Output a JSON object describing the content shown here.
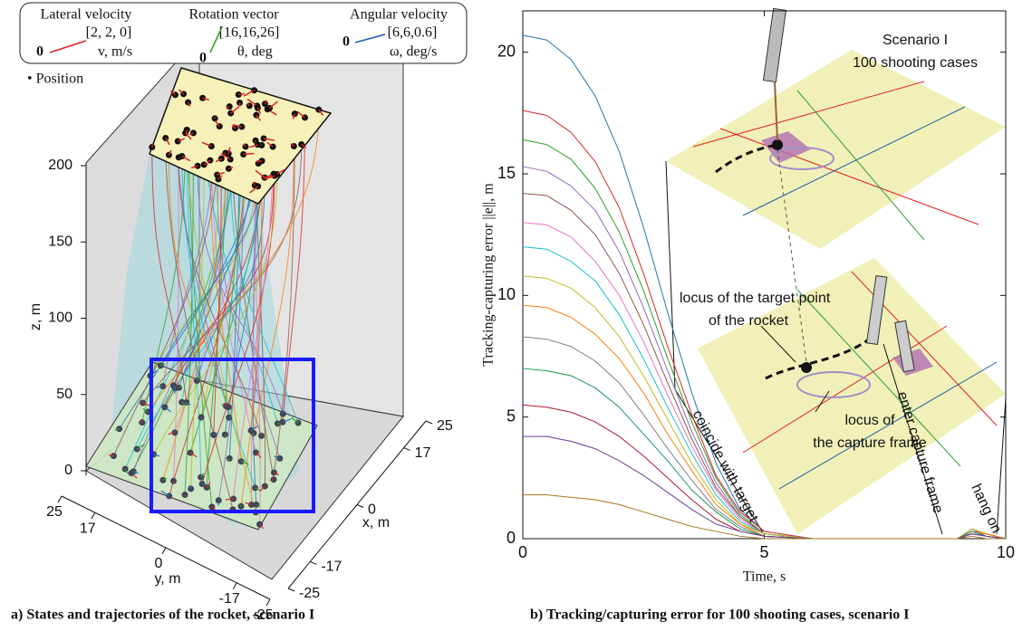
{
  "panel_a": {
    "legend": {
      "lateral": {
        "title": "Lateral velocity",
        "vector": "[2, 2, 0]",
        "origin": "0",
        "unit": "v, m/s"
      },
      "rotation": {
        "title": "Rotation vector",
        "vector": "[16,16,26]",
        "origin": "0",
        "unit": "θ, deg"
      },
      "angular": {
        "title": "Angular velocity",
        "vector": "[6,6,0.6]",
        "origin": "0",
        "unit": "ω, deg/s"
      }
    },
    "position_label": "• Position",
    "z_label": "z, m",
    "z_ticks": [
      0,
      50,
      100,
      150,
      200
    ],
    "y_label": "y, m",
    "y_ticks": [
      25,
      17,
      0,
      -17,
      -25
    ],
    "x_label": "x, m",
    "x_ticks": [
      25,
      17,
      0,
      -17,
      -25
    ],
    "caption": "a)  States and trajectories of the rocket, scenario I"
  },
  "chart_data": {
    "type": "line",
    "xlabel": "Time, s",
    "ylabel": "Tracking-capturing error ||e||, m",
    "x": [
      0,
      0.5,
      1,
      1.5,
      2,
      2.5,
      3,
      3.5,
      4,
      4.5,
      5,
      6,
      9,
      9.3,
      9.6,
      10
    ],
    "series": [
      {
        "color": "#1f77b4",
        "values": [
          20.7,
          20.5,
          19.7,
          18.2,
          15.9,
          12.8,
          9.3,
          6.0,
          3.1,
          1.2,
          0.3,
          0,
          0,
          0.4,
          0.2,
          0
        ]
      },
      {
        "color": "#d62728",
        "values": [
          17.6,
          17.4,
          16.7,
          15.5,
          13.6,
          10.9,
          7.9,
          5.1,
          2.6,
          1.1,
          0.3,
          0,
          0,
          0.4,
          0.2,
          0
        ]
      },
      {
        "color": "#2ca02c",
        "values": [
          16.4,
          16.2,
          15.6,
          14.4,
          12.6,
          10.2,
          7.4,
          4.8,
          2.5,
          1.0,
          0.2,
          0,
          0,
          0.3,
          0.2,
          0
        ]
      },
      {
        "color": "#9467bd",
        "values": [
          15.3,
          15.1,
          14.5,
          13.5,
          11.8,
          9.5,
          6.9,
          4.4,
          2.3,
          0.9,
          0.2,
          0,
          0,
          0.4,
          0.1,
          0
        ]
      },
      {
        "color": "#8c564b",
        "values": [
          14.2,
          14.1,
          13.5,
          12.5,
          10.9,
          8.8,
          6.4,
          4.1,
          2.1,
          0.9,
          0.2,
          0,
          0,
          0.3,
          0.2,
          0
        ]
      },
      {
        "color": "#e377c2",
        "values": [
          13.0,
          12.9,
          12.4,
          11.4,
          10.0,
          8.1,
          5.9,
          3.8,
          2.0,
          0.8,
          0.2,
          0,
          0,
          0.4,
          0.2,
          0
        ]
      },
      {
        "color": "#17becf",
        "values": [
          12.0,
          11.9,
          11.4,
          10.6,
          9.2,
          7.4,
          5.4,
          3.5,
          1.8,
          0.7,
          0.2,
          0,
          0,
          0.3,
          0.1,
          0
        ]
      },
      {
        "color": "#bcbd22",
        "values": [
          10.8,
          10.7,
          10.3,
          9.5,
          8.3,
          6.7,
          4.9,
          3.1,
          1.6,
          0.6,
          0.2,
          0,
          0,
          0.4,
          0.2,
          0
        ]
      },
      {
        "color": "#ff7f0e",
        "values": [
          9.6,
          9.5,
          9.1,
          8.4,
          7.4,
          6.0,
          4.3,
          2.8,
          1.4,
          0.6,
          0.1,
          0,
          0,
          0.3,
          0.2,
          0
        ]
      },
      {
        "color": "#7f7f7f",
        "values": [
          8.3,
          8.2,
          7.9,
          7.3,
          6.4,
          5.1,
          3.7,
          2.4,
          1.2,
          0.5,
          0.1,
          0,
          0,
          0.2,
          0.1,
          0
        ]
      },
      {
        "color": "#1a9850",
        "values": [
          7.0,
          6.9,
          6.7,
          6.2,
          5.4,
          4.3,
          3.2,
          2.0,
          1.1,
          0.4,
          0.1,
          0,
          0,
          0.3,
          0.1,
          0
        ]
      },
      {
        "color": "#b2182b",
        "values": [
          5.5,
          5.4,
          5.2,
          4.8,
          4.2,
          3.4,
          2.5,
          1.6,
          0.8,
          0.3,
          0.1,
          0,
          0,
          0.2,
          0.1,
          0
        ]
      },
      {
        "color": "#6a3d9a",
        "values": [
          4.2,
          4.2,
          4.0,
          3.7,
          3.2,
          2.6,
          1.9,
          1.2,
          0.6,
          0.3,
          0.1,
          0,
          0,
          0.2,
          0.1,
          0
        ]
      },
      {
        "color": "#a6761d",
        "values": [
          1.8,
          1.8,
          1.7,
          1.6,
          1.4,
          1.1,
          0.8,
          0.5,
          0.3,
          0.1,
          0,
          0,
          0,
          0.1,
          0,
          0
        ]
      }
    ],
    "xlim": [
      0,
      10
    ],
    "ylim": [
      0,
      21.7
    ],
    "xticks": [
      0,
      5,
      10
    ],
    "yticks": [
      0,
      5,
      10,
      15,
      20
    ],
    "annotations": {
      "scenario": "Scenario I",
      "cases": "100 shooting cases",
      "locus_target_1": "locus of  the  target point",
      "locus_target_2": "of the rocket",
      "locus_frame_1": "locus of",
      "locus_frame_2": "the capture frame",
      "coincide": "coincide with target",
      "enter": "enter capture frame",
      "hang": "hang on"
    },
    "caption": "b) Tracking/capturing error for 100 shooting cases, scenario I"
  }
}
